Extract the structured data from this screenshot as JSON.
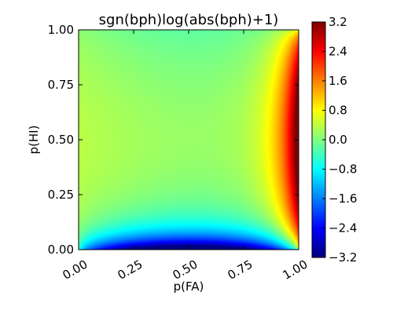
{
  "chart_data": {
    "type": "heatmap",
    "title": "sgn(bph)log(abs(bph)+1)",
    "xlabel": "p(FA)",
    "ylabel": "p(HI)",
    "xlim": [
      0.0,
      1.0
    ],
    "ylim": [
      0.0,
      1.0
    ],
    "x_ticks": [
      0.0,
      0.25,
      0.5,
      0.75,
      1.0
    ],
    "x_tick_labels": [
      "0.00",
      "0.25",
      "0.50",
      "0.75",
      "1.00"
    ],
    "y_ticks": [
      0.0,
      0.25,
      0.5,
      0.75,
      1.0
    ],
    "y_tick_labels": [
      "0.00",
      "0.25",
      "0.50",
      "0.75",
      "1.00"
    ],
    "colorbar": {
      "colormap": "jet",
      "range": [
        -3.2,
        3.2
      ],
      "ticks": [
        3.2,
        2.4,
        1.6,
        0.8,
        0.0,
        -0.8,
        -1.6,
        -2.4,
        -3.2
      ],
      "tick_labels": [
        "3.2",
        "2.4",
        "1.6",
        "0.8",
        "0.0",
        "−0.8",
        "−1.6",
        "−2.4",
        "−3.2"
      ]
    },
    "value_description_points": [
      {
        "p_FA": 0.05,
        "p_HI": 0.5,
        "value": 0.35
      },
      {
        "p_FA": 0.5,
        "p_HI": 0.95,
        "value": -0.2
      },
      {
        "p_FA": 0.95,
        "p_HI": 0.5,
        "value": 2.8
      },
      {
        "p_FA": 0.5,
        "p_HI": 0.02,
        "value": -3.0
      },
      {
        "p_FA": 0.5,
        "p_HI": 0.5,
        "value": 0.05
      }
    ]
  }
}
